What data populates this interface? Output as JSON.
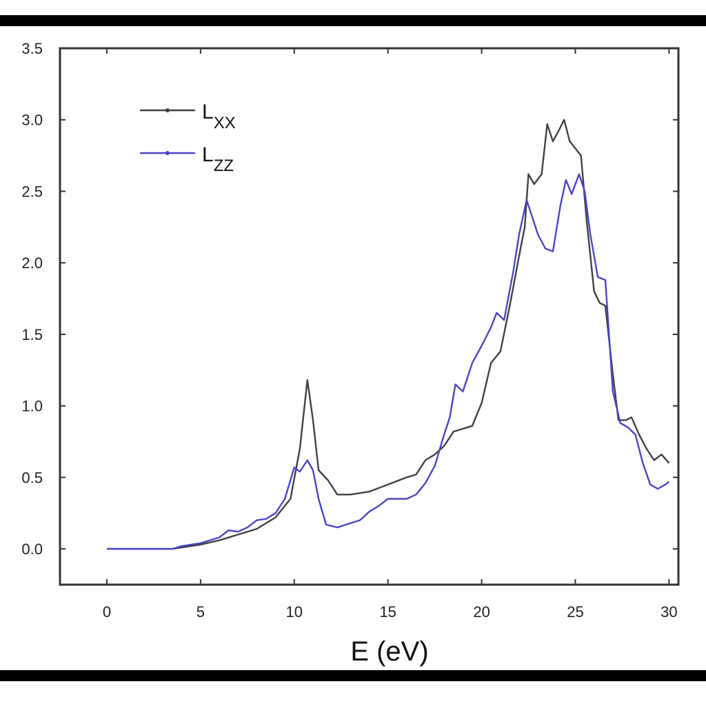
{
  "chart_data": {
    "type": "line",
    "xlabel": "E (eV)",
    "ylabel": "",
    "xlim": [
      -2.5,
      30.5
    ],
    "ylim": [
      -0.25,
      3.5
    ],
    "xticks": [
      0,
      5,
      10,
      15,
      20,
      25,
      30
    ],
    "xtick_labels": [
      "0",
      "5",
      "10",
      "15",
      "20",
      "25",
      "30"
    ],
    "yticks": [
      0.0,
      0.5,
      1.0,
      1.5,
      2.0,
      2.5,
      3.0,
      3.5
    ],
    "ytick_labels": [
      "0.0",
      "0.5",
      "1.0",
      "1.5",
      "2.0",
      "2.5",
      "3.0",
      "3.5"
    ],
    "grid": false,
    "legend_position": "top-left",
    "series": [
      {
        "name": "Lxx",
        "label_main": "L",
        "label_sub": "XX",
        "color": "#404040",
        "points": [
          [
            0,
            0
          ],
          [
            3,
            0
          ],
          [
            3.5,
            0
          ],
          [
            4,
            0.01
          ],
          [
            5,
            0.03
          ],
          [
            6,
            0.06
          ],
          [
            7,
            0.1
          ],
          [
            8,
            0.14
          ],
          [
            9,
            0.22
          ],
          [
            9.8,
            0.35
          ],
          [
            10.3,
            0.7
          ],
          [
            10.7,
            1.18
          ],
          [
            11,
            0.9
          ],
          [
            11.3,
            0.55
          ],
          [
            11.8,
            0.48
          ],
          [
            12.3,
            0.38
          ],
          [
            13,
            0.38
          ],
          [
            14,
            0.4
          ],
          [
            15,
            0.45
          ],
          [
            16,
            0.5
          ],
          [
            16.5,
            0.52
          ],
          [
            17,
            0.62
          ],
          [
            17.5,
            0.66
          ],
          [
            18,
            0.72
          ],
          [
            18.5,
            0.82
          ],
          [
            19,
            0.84
          ],
          [
            19.5,
            0.86
          ],
          [
            20,
            1.02
          ],
          [
            20.5,
            1.3
          ],
          [
            21,
            1.38
          ],
          [
            21.5,
            1.7
          ],
          [
            22,
            2.05
          ],
          [
            22.3,
            2.25
          ],
          [
            22.5,
            2.62
          ],
          [
            22.8,
            2.55
          ],
          [
            23.2,
            2.62
          ],
          [
            23.5,
            2.97
          ],
          [
            23.8,
            2.85
          ],
          [
            24.1,
            2.92
          ],
          [
            24.4,
            3.0
          ],
          [
            24.7,
            2.85
          ],
          [
            25,
            2.8
          ],
          [
            25.3,
            2.75
          ],
          [
            25.6,
            2.3
          ],
          [
            26,
            1.8
          ],
          [
            26.3,
            1.72
          ],
          [
            26.6,
            1.7
          ],
          [
            27,
            1.22
          ],
          [
            27.3,
            0.9
          ],
          [
            27.7,
            0.9
          ],
          [
            28,
            0.92
          ],
          [
            28.4,
            0.8
          ],
          [
            28.8,
            0.7
          ],
          [
            29.2,
            0.62
          ],
          [
            29.6,
            0.66
          ],
          [
            30,
            0.6
          ]
        ]
      },
      {
        "name": "Lzz",
        "label_main": "L",
        "label_sub": "ZZ",
        "color": "#4a44c6",
        "points": [
          [
            0,
            0
          ],
          [
            3,
            0
          ],
          [
            3.5,
            0
          ],
          [
            4,
            0.02
          ],
          [
            5,
            0.04
          ],
          [
            6,
            0.08
          ],
          [
            6.5,
            0.13
          ],
          [
            7,
            0.12
          ],
          [
            7.5,
            0.15
          ],
          [
            8,
            0.2
          ],
          [
            8.5,
            0.21
          ],
          [
            9,
            0.25
          ],
          [
            9.5,
            0.35
          ],
          [
            10,
            0.57
          ],
          [
            10.3,
            0.54
          ],
          [
            10.7,
            0.62
          ],
          [
            11,
            0.55
          ],
          [
            11.3,
            0.35
          ],
          [
            11.7,
            0.17
          ],
          [
            12.3,
            0.15
          ],
          [
            13,
            0.18
          ],
          [
            13.5,
            0.2
          ],
          [
            14,
            0.26
          ],
          [
            14.5,
            0.3
          ],
          [
            15,
            0.35
          ],
          [
            15.5,
            0.35
          ],
          [
            16,
            0.35
          ],
          [
            16.5,
            0.38
          ],
          [
            17,
            0.46
          ],
          [
            17.5,
            0.58
          ],
          [
            18,
            0.8
          ],
          [
            18.3,
            0.92
          ],
          [
            18.6,
            1.15
          ],
          [
            19,
            1.1
          ],
          [
            19.5,
            1.3
          ],
          [
            20,
            1.42
          ],
          [
            20.5,
            1.55
          ],
          [
            20.8,
            1.65
          ],
          [
            21.2,
            1.6
          ],
          [
            21.7,
            1.95
          ],
          [
            22,
            2.2
          ],
          [
            22.4,
            2.44
          ],
          [
            22.7,
            2.32
          ],
          [
            23,
            2.2
          ],
          [
            23.4,
            2.1
          ],
          [
            23.8,
            2.08
          ],
          [
            24.2,
            2.4
          ],
          [
            24.5,
            2.58
          ],
          [
            24.8,
            2.48
          ],
          [
            25.2,
            2.62
          ],
          [
            25.5,
            2.5
          ],
          [
            25.8,
            2.2
          ],
          [
            26.2,
            1.9
          ],
          [
            26.6,
            1.88
          ],
          [
            27,
            1.1
          ],
          [
            27.4,
            0.88
          ],
          [
            27.8,
            0.85
          ],
          [
            28.2,
            0.8
          ],
          [
            28.6,
            0.6
          ],
          [
            29,
            0.45
          ],
          [
            29.4,
            0.42
          ],
          [
            29.8,
            0.45
          ],
          [
            30,
            0.47
          ]
        ]
      }
    ]
  }
}
